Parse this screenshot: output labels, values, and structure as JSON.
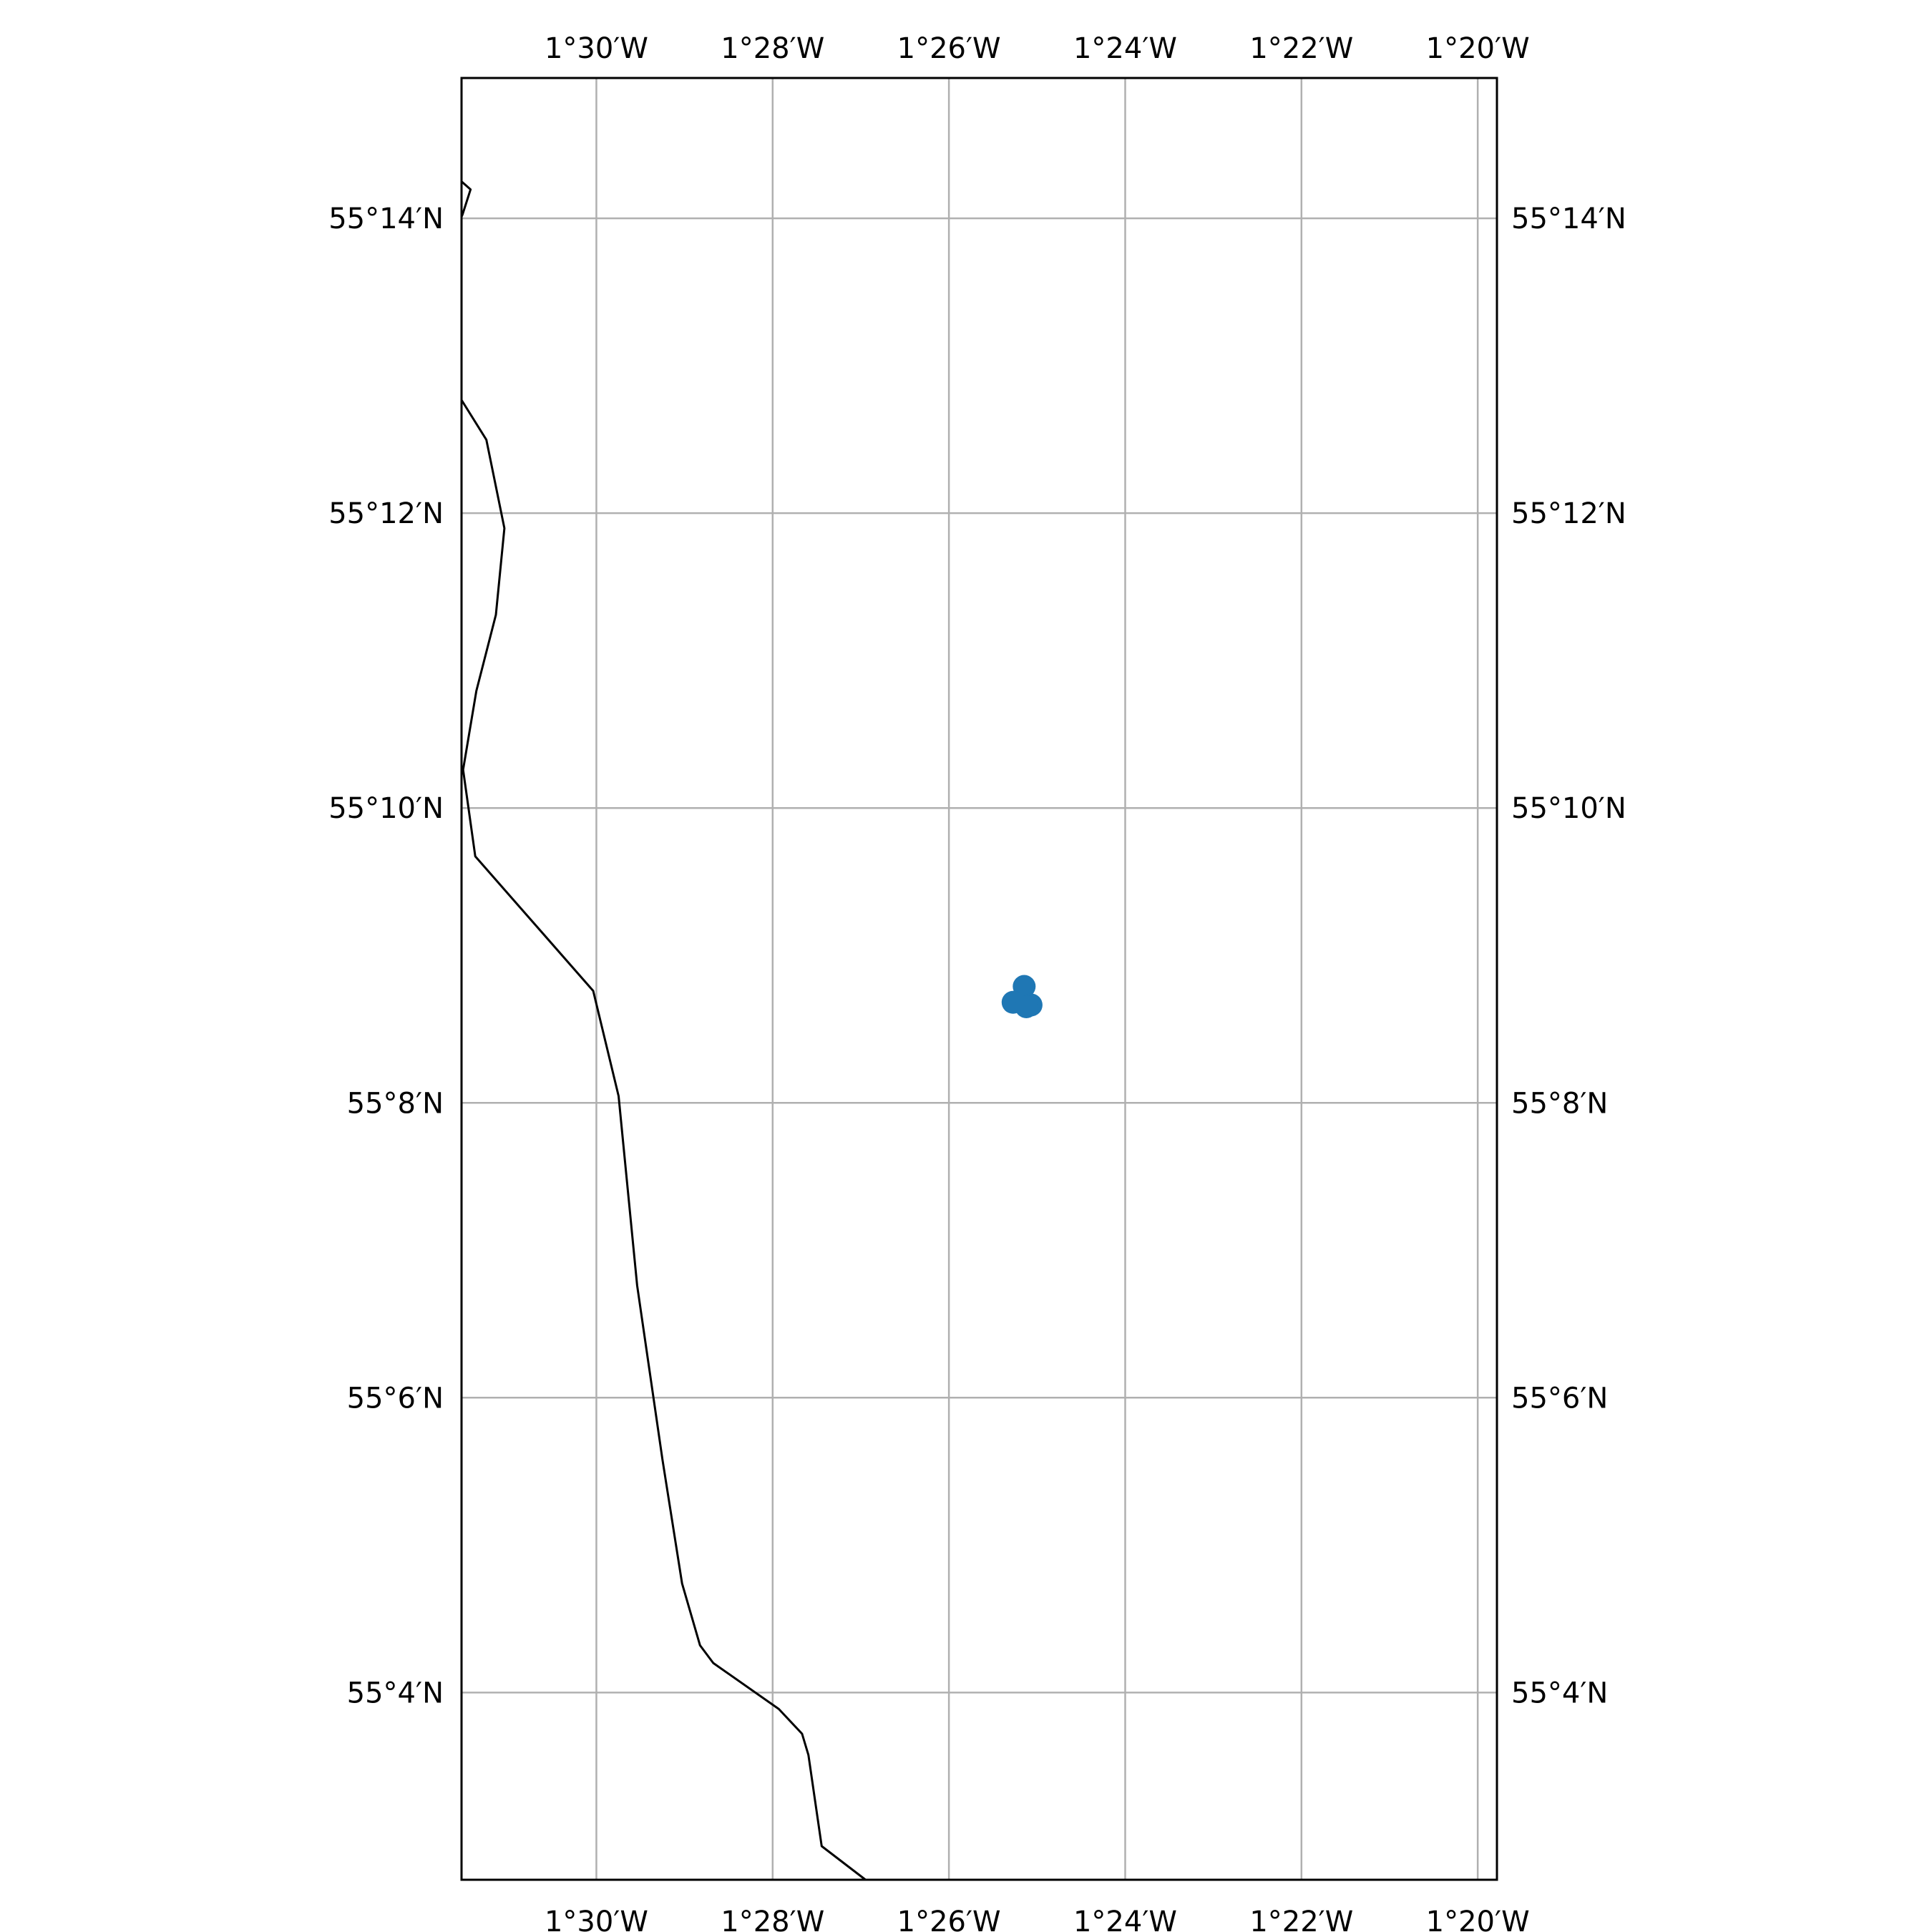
{
  "map": {
    "lon_range": [
      -1.5255,
      -1.3297
    ],
    "lat_range": [
      55.0455,
      55.2492
    ],
    "grid": true,
    "coastline_color": "#000000",
    "grid_color": "#b0b0b0",
    "point_color": "#1f77b4",
    "lon_ticks": [
      {
        "value": -1.5,
        "label": "1°30′W"
      },
      {
        "value": -1.466667,
        "label": "1°28′W"
      },
      {
        "value": -1.433333,
        "label": "1°26′W"
      },
      {
        "value": -1.4,
        "label": "1°24′W"
      },
      {
        "value": -1.366667,
        "label": "1°22′W"
      },
      {
        "value": -1.333333,
        "label": "1°20′W"
      }
    ],
    "lat_ticks": [
      {
        "value": 55.233333,
        "label": "55°14′N"
      },
      {
        "value": 55.2,
        "label": "55°12′N"
      },
      {
        "value": 55.166667,
        "label": "55°10′N"
      },
      {
        "value": 55.133333,
        "label": "55°8′N"
      },
      {
        "value": 55.1,
        "label": "55°6′N"
      },
      {
        "value": 55.066667,
        "label": "55°4′N"
      }
    ],
    "coastline_segments": [
      [
        [
          -1.5255,
          55.2375
        ],
        [
          -1.5238,
          55.2366
        ],
        [
          -1.5253,
          55.2338
        ],
        [
          -1.5255,
          55.2335
        ]
      ],
      [
        [
          -1.5255,
          55.2128
        ],
        [
          -1.5208,
          55.2083
        ],
        [
          -1.5174,
          55.1983
        ],
        [
          -1.519,
          55.1885
        ],
        [
          -1.5227,
          55.1799
        ],
        [
          -1.5252,
          55.171
        ],
        [
          -1.5229,
          55.1612
        ],
        [
          -1.5006,
          55.146
        ],
        [
          -1.4958,
          55.1341
        ],
        [
          -1.4923,
          55.1127
        ],
        [
          -1.4875,
          55.093
        ],
        [
          -1.4838,
          55.079
        ],
        [
          -1.4804,
          55.072
        ],
        [
          -1.4779,
          55.07
        ],
        [
          -1.4655,
          55.0648
        ],
        [
          -1.4611,
          55.062
        ],
        [
          -1.4599,
          55.0596
        ],
        [
          -1.4574,
          55.0493
        ],
        [
          -1.4491,
          55.0455
        ]
      ]
    ],
    "points": [
      {
        "lon": -1.4191,
        "lat": 55.1465
      },
      {
        "lon": -1.4212,
        "lat": 55.1447
      },
      {
        "lon": -1.4178,
        "lat": 55.1444
      },
      {
        "lon": -1.4187,
        "lat": 55.1442
      }
    ]
  }
}
